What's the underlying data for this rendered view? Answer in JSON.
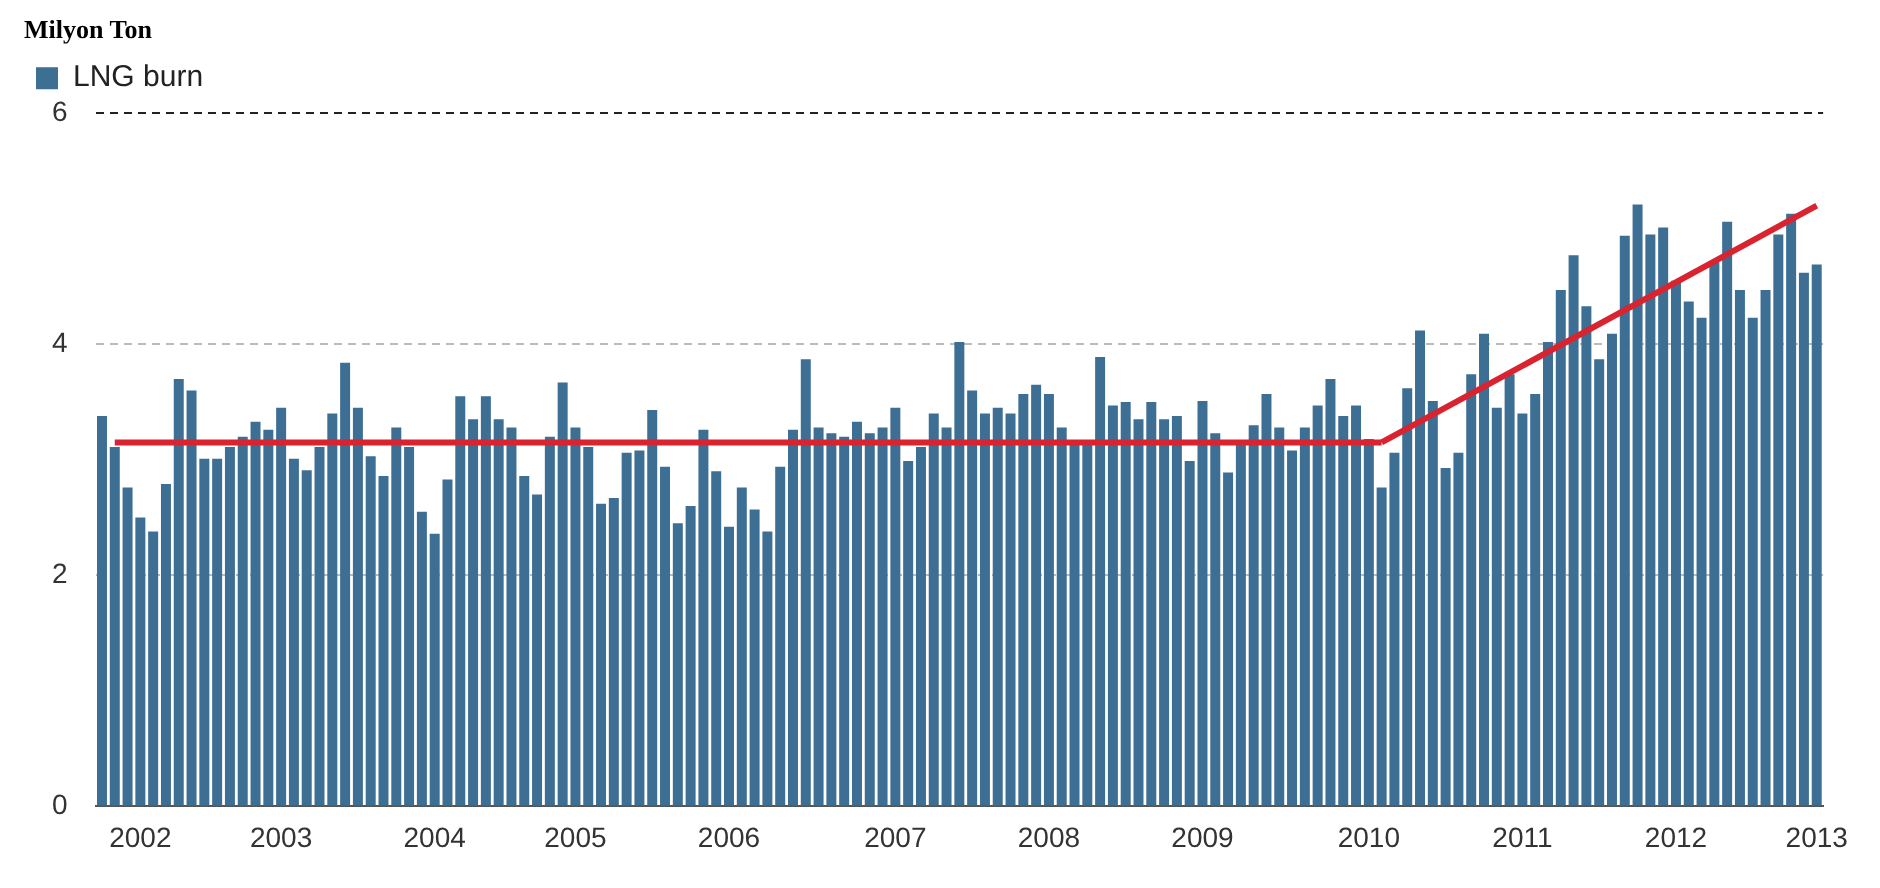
{
  "chart_data": {
    "type": "bar",
    "ylabel": "Milyon Ton",
    "categories": [
      null,
      null,
      null,
      "2002",
      null,
      null,
      null,
      null,
      null,
      null,
      null,
      null,
      null,
      null,
      "2003",
      null,
      null,
      null,
      null,
      null,
      null,
      null,
      null,
      null,
      null,
      null,
      "2004",
      null,
      null,
      null,
      null,
      null,
      null,
      null,
      null,
      null,
      null,
      "2005",
      null,
      null,
      null,
      null,
      null,
      null,
      null,
      null,
      null,
      null,
      null,
      "2006",
      null,
      null,
      null,
      null,
      null,
      null,
      null,
      null,
      null,
      null,
      null,
      null,
      "2007",
      null,
      null,
      null,
      null,
      null,
      null,
      null,
      null,
      null,
      null,
      null,
      "2008",
      null,
      null,
      null,
      null,
      null,
      null,
      null,
      null,
      null,
      null,
      null,
      "2009",
      null,
      null,
      null,
      null,
      null,
      null,
      null,
      null,
      null,
      null,
      null,
      null,
      "2010",
      null,
      null,
      null,
      null,
      null,
      null,
      null,
      null,
      null,
      null,
      null,
      "2011",
      null,
      null,
      null,
      null,
      null,
      null,
      null,
      null,
      null,
      null,
      null,
      "2012",
      null,
      null,
      null,
      null,
      null,
      null,
      null,
      null,
      null,
      null,
      "2013"
    ],
    "series": [
      {
        "name": "LNG burn",
        "color": "#3d6e94",
        "values": [
          3.38,
          3.11,
          2.76,
          2.5,
          2.38,
          2.79,
          3.7,
          3.6,
          3.01,
          3.01,
          3.11,
          3.2,
          3.33,
          3.26,
          3.45,
          3.01,
          2.91,
          3.11,
          3.4,
          3.84,
          3.45,
          3.03,
          2.86,
          3.28,
          3.11,
          2.55,
          2.36,
          2.83,
          3.55,
          3.35,
          3.55,
          3.35,
          3.28,
          2.86,
          2.7,
          3.2,
          3.67,
          3.28,
          3.11,
          2.62,
          2.67,
          3.06,
          3.08,
          3.43,
          2.94,
          2.45,
          2.6,
          3.26,
          2.9,
          2.42,
          2.76,
          2.57,
          2.38,
          2.94,
          3.26,
          3.87,
          3.28,
          3.23,
          3.2,
          3.33,
          3.23,
          3.28,
          3.45,
          2.99,
          3.11,
          3.4,
          3.28,
          4.02,
          3.6,
          3.4,
          3.45,
          3.4,
          3.57,
          3.65,
          3.57,
          3.28,
          3.15,
          3.15,
          3.89,
          3.47,
          3.5,
          3.35,
          3.5,
          3.35,
          3.38,
          2.99,
          3.51,
          3.23,
          2.89,
          3.15,
          3.3,
          3.57,
          3.28,
          3.08,
          3.28,
          3.47,
          3.7,
          3.38,
          3.47,
          3.18,
          2.76,
          3.06,
          3.62,
          4.12,
          3.51,
          2.93,
          3.06,
          3.74,
          4.09,
          3.45,
          3.74,
          3.4,
          3.57,
          4.02,
          4.47,
          4.77,
          4.33,
          3.87,
          4.09,
          4.94,
          5.21,
          4.95,
          5.01,
          4.55,
          4.37,
          4.23,
          4.71,
          5.06,
          4.47,
          4.23,
          4.47,
          4.95,
          5.13,
          4.62,
          4.69
        ]
      },
      {
        "type": "line",
        "color": "#d9232f",
        "values": [
          null,
          3.15,
          null,
          null,
          null,
          null,
          null,
          null,
          null,
          null,
          null,
          null,
          null,
          null,
          null,
          null,
          null,
          null,
          null,
          null,
          null,
          null,
          null,
          null,
          null,
          null,
          null,
          null,
          null,
          null,
          null,
          null,
          null,
          null,
          null,
          null,
          null,
          null,
          null,
          null,
          null,
          null,
          null,
          null,
          null,
          null,
          null,
          null,
          null,
          null,
          null,
          null,
          null,
          null,
          null,
          null,
          null,
          null,
          null,
          null,
          null,
          null,
          null,
          null,
          null,
          null,
          null,
          null,
          null,
          null,
          null,
          null,
          null,
          null,
          null,
          null,
          null,
          null,
          null,
          null,
          null,
          null,
          null,
          null,
          null,
          null,
          null,
          null,
          null,
          null,
          null,
          null,
          null,
          null,
          null,
          null,
          null,
          null,
          null,
          null,
          3.15,
          null,
          null,
          null,
          null,
          null,
          null,
          null,
          null,
          null,
          null,
          null,
          null,
          null,
          null,
          null,
          null,
          null,
          null,
          null,
          null,
          null,
          null,
          null,
          null,
          null,
          null,
          null,
          null,
          null,
          null,
          null,
          null,
          null,
          null
        ]
      },
      {
        "type": "line",
        "color": "#d9232f",
        "values": [
          null,
          null,
          null,
          null,
          null,
          null,
          null,
          null,
          null,
          null,
          null,
          null,
          null,
          null,
          null,
          null,
          null,
          null,
          null,
          null,
          null,
          null,
          null,
          null,
          null,
          null,
          null,
          null,
          null,
          null,
          null,
          null,
          null,
          null,
          null,
          null,
          null,
          null,
          null,
          null,
          null,
          null,
          null,
          null,
          null,
          null,
          null,
          null,
          null,
          null,
          null,
          null,
          null,
          null,
          null,
          null,
          null,
          null,
          null,
          null,
          null,
          null,
          null,
          null,
          null,
          null,
          null,
          null,
          null,
          null,
          null,
          null,
          null,
          null,
          null,
          null,
          null,
          null,
          null,
          null,
          null,
          null,
          null,
          null,
          null,
          null,
          null,
          null,
          null,
          null,
          null,
          null,
          null,
          null,
          null,
          null,
          null,
          null,
          null,
          null,
          3.15,
          null,
          null,
          null,
          null,
          null,
          null,
          null,
          null,
          null,
          null,
          null,
          null,
          null,
          null,
          null,
          null,
          null,
          null,
          null,
          null,
          null,
          null,
          null,
          null,
          null,
          null,
          null,
          null,
          null,
          null,
          null,
          null,
          null,
          5.2
        ]
      }
    ],
    "ylim": [
      0,
      6
    ],
    "yticks": [
      0,
      2,
      4,
      6
    ],
    "grid": "y",
    "legend": "top left"
  }
}
